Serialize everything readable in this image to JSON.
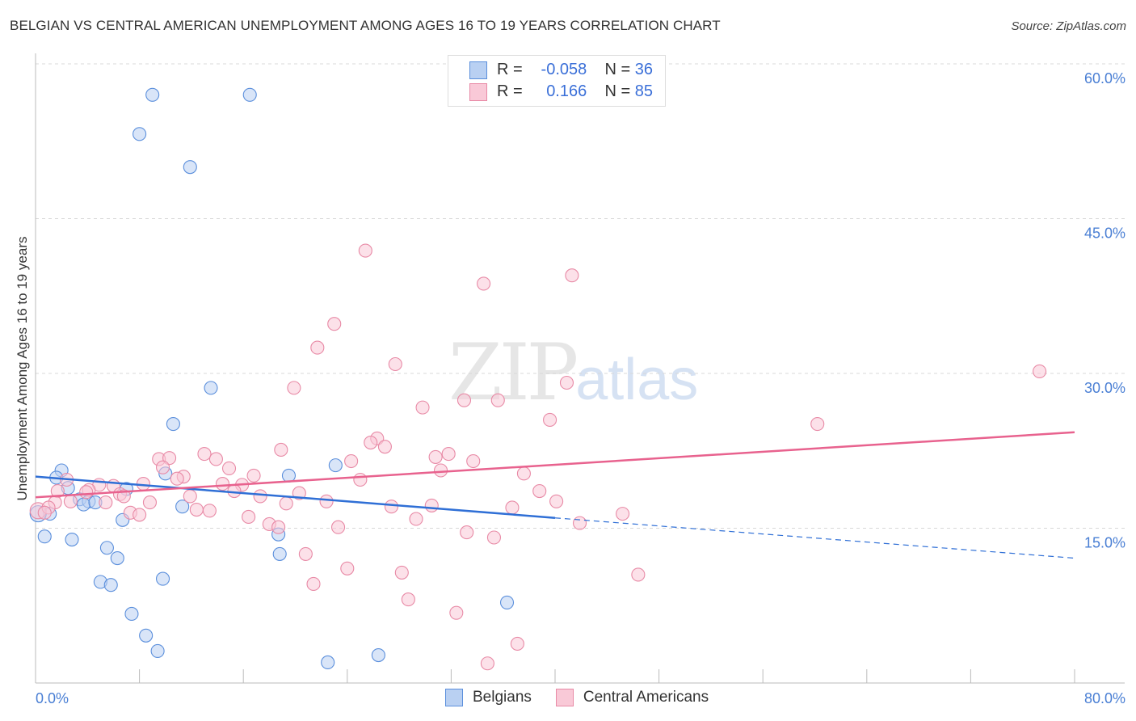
{
  "chart_data": {
    "type": "scatter",
    "title": "BELGIAN VS CENTRAL AMERICAN UNEMPLOYMENT AMONG AGES 16 TO 19 YEARS CORRELATION CHART",
    "source": "Source: ZipAtlas.com",
    "ylabel": "Unemployment Among Ages 16 to 19 years",
    "xlabel": "",
    "xlim": [
      0,
      80
    ],
    "ylim": [
      0,
      60
    ],
    "x_tick_labels": [
      "0.0%",
      "80.0%"
    ],
    "y_ticks": [
      15,
      30,
      45,
      60
    ],
    "y_tick_labels": [
      "15.0%",
      "30.0%",
      "45.0%",
      "60.0%"
    ],
    "grid": true,
    "watermark": "ZIPatlas",
    "legend": {
      "placement": "top-center",
      "rows": [
        {
          "r_label": "R =",
          "r": "-0.058",
          "n_label": "N =",
          "n": "36"
        },
        {
          "r_label": "R =",
          "r": "0.166",
          "n_label": "N =",
          "n": "85"
        }
      ]
    },
    "series": [
      {
        "name": "Belgians",
        "color": "#5b8fdc",
        "fill": "#b9d0f2",
        "trend": {
          "x": [
            0,
            40,
            80
          ],
          "y": [
            20.0,
            16.0,
            12.1
          ],
          "solid_until": 40,
          "color": "#2f6fd6"
        },
        "points": [
          [
            9.0,
            57.0
          ],
          [
            16.5,
            57.0
          ],
          [
            8.0,
            53.2
          ],
          [
            11.9,
            50.0
          ],
          [
            13.5,
            28.6
          ],
          [
            10.6,
            25.1
          ],
          [
            2.0,
            20.6
          ],
          [
            1.6,
            19.9
          ],
          [
            19.5,
            20.1
          ],
          [
            23.1,
            21.1
          ],
          [
            10.0,
            20.3
          ],
          [
            2.5,
            18.9
          ],
          [
            7.0,
            18.8
          ],
          [
            3.4,
            17.8
          ],
          [
            4.1,
            17.6
          ],
          [
            3.7,
            17.3
          ],
          [
            4.6,
            17.5
          ],
          [
            11.3,
            17.1
          ],
          [
            1.1,
            16.4
          ],
          [
            6.7,
            15.8
          ],
          [
            18.7,
            14.4
          ],
          [
            0.7,
            14.2
          ],
          [
            2.8,
            13.9
          ],
          [
            5.5,
            13.1
          ],
          [
            18.8,
            12.5
          ],
          [
            6.3,
            12.1
          ],
          [
            9.8,
            10.1
          ],
          [
            5.0,
            9.8
          ],
          [
            5.8,
            9.5
          ],
          [
            36.3,
            7.8
          ],
          [
            7.4,
            6.7
          ],
          [
            8.5,
            4.6
          ],
          [
            9.4,
            3.1
          ],
          [
            26.4,
            2.7
          ],
          [
            22.5,
            2.0
          ],
          [
            0.2,
            16.4
          ]
        ]
      },
      {
        "name": "Central Americans",
        "color": "#e88aa6",
        "fill": "#f9c9d7",
        "trend": {
          "x": [
            0,
            80
          ],
          "y": [
            18.0,
            24.3
          ],
          "color": "#e8628e"
        },
        "points": [
          [
            25.4,
            41.9
          ],
          [
            41.3,
            39.5
          ],
          [
            34.5,
            38.7
          ],
          [
            23.0,
            34.8
          ],
          [
            21.7,
            32.5
          ],
          [
            27.7,
            30.9
          ],
          [
            77.3,
            30.2
          ],
          [
            40.9,
            29.1
          ],
          [
            19.9,
            28.6
          ],
          [
            33.0,
            27.4
          ],
          [
            35.6,
            27.4
          ],
          [
            29.8,
            26.7
          ],
          [
            39.6,
            25.5
          ],
          [
            60.2,
            25.1
          ],
          [
            26.3,
            23.7
          ],
          [
            25.8,
            23.3
          ],
          [
            26.9,
            22.9
          ],
          [
            18.9,
            22.6
          ],
          [
            13.0,
            22.2
          ],
          [
            31.8,
            22.2
          ],
          [
            30.8,
            21.9
          ],
          [
            9.5,
            21.7
          ],
          [
            10.3,
            21.8
          ],
          [
            13.9,
            21.7
          ],
          [
            33.7,
            21.5
          ],
          [
            24.3,
            21.5
          ],
          [
            14.9,
            20.8
          ],
          [
            31.2,
            20.6
          ],
          [
            9.8,
            20.9
          ],
          [
            16.8,
            20.1
          ],
          [
            37.6,
            20.3
          ],
          [
            11.4,
            20.0
          ],
          [
            10.9,
            19.8
          ],
          [
            2.4,
            19.7
          ],
          [
            8.3,
            19.3
          ],
          [
            14.4,
            19.3
          ],
          [
            15.9,
            19.2
          ],
          [
            4.9,
            19.2
          ],
          [
            6.0,
            19.1
          ],
          [
            25.0,
            19.7
          ],
          [
            4.1,
            18.7
          ],
          [
            1.7,
            18.6
          ],
          [
            3.9,
            18.5
          ],
          [
            15.3,
            18.6
          ],
          [
            20.3,
            18.4
          ],
          [
            38.8,
            18.6
          ],
          [
            6.5,
            18.3
          ],
          [
            11.9,
            18.1
          ],
          [
            17.3,
            18.1
          ],
          [
            6.8,
            18.1
          ],
          [
            2.7,
            17.6
          ],
          [
            1.5,
            17.5
          ],
          [
            5.4,
            17.5
          ],
          [
            8.8,
            17.5
          ],
          [
            22.4,
            17.6
          ],
          [
            19.3,
            17.4
          ],
          [
            30.5,
            17.2
          ],
          [
            27.4,
            17.1
          ],
          [
            40.1,
            17.6
          ],
          [
            36.7,
            17.0
          ],
          [
            12.4,
            16.8
          ],
          [
            13.4,
            16.7
          ],
          [
            7.3,
            16.5
          ],
          [
            8.0,
            16.3
          ],
          [
            16.4,
            16.1
          ],
          [
            29.3,
            15.9
          ],
          [
            18.0,
            15.4
          ],
          [
            18.7,
            15.1
          ],
          [
            23.3,
            15.1
          ],
          [
            41.9,
            15.5
          ],
          [
            45.2,
            16.4
          ],
          [
            33.2,
            14.6
          ],
          [
            35.3,
            14.1
          ],
          [
            20.8,
            12.5
          ],
          [
            24.0,
            11.1
          ],
          [
            28.2,
            10.7
          ],
          [
            46.4,
            10.5
          ],
          [
            21.4,
            9.6
          ],
          [
            28.7,
            8.1
          ],
          [
            32.4,
            6.8
          ],
          [
            37.1,
            3.8
          ],
          [
            34.8,
            1.9
          ],
          [
            0.2,
            16.7
          ],
          [
            1.0,
            17.0
          ],
          [
            0.7,
            16.5
          ]
        ]
      }
    ]
  }
}
